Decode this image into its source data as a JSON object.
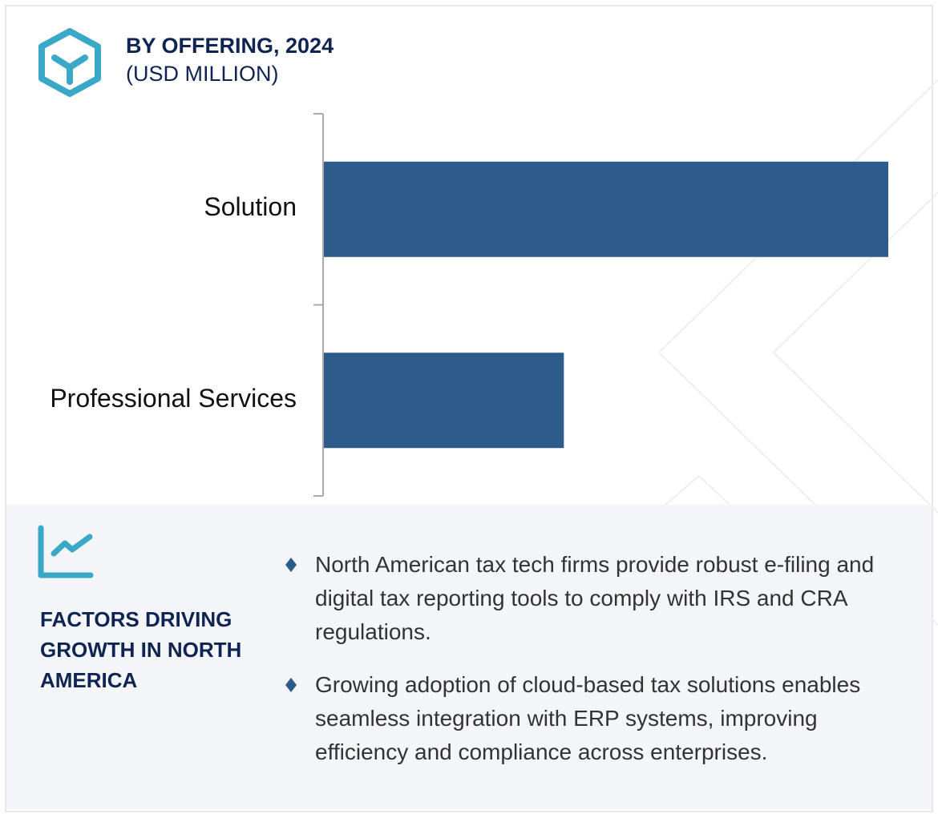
{
  "header": {
    "title": "BY OFFERING, 2024",
    "subtitle": "(USD MILLION)",
    "icon": "cube-icon"
  },
  "colors": {
    "bar": "#2d5c8a",
    "accent": "#3aa8c7",
    "title": "#0f2452",
    "panel": "#f3f5f9"
  },
  "chart_data": {
    "type": "bar",
    "orientation": "horizontal",
    "title": "BY OFFERING, 2024",
    "subtitle": "(USD MILLION)",
    "categories": [
      "Solution",
      "Professional Services"
    ],
    "values": [
      100,
      42.6
    ],
    "value_scale": "relative (no axis values printed)",
    "xlim": [
      0,
      100
    ],
    "grid": false,
    "legend": "none"
  },
  "factors": {
    "icon": "trend-chart-icon",
    "title": "FACTORS DRIVING GROWTH IN NORTH AMERICA",
    "bullets": [
      "North American tax tech firms provide robust e-filing and digital tax reporting tools to comply with IRS and CRA regulations.",
      "Growing adoption of cloud-based tax solutions enables seamless integration with ERP systems, improving efficiency and compliance across enterprises."
    ]
  }
}
